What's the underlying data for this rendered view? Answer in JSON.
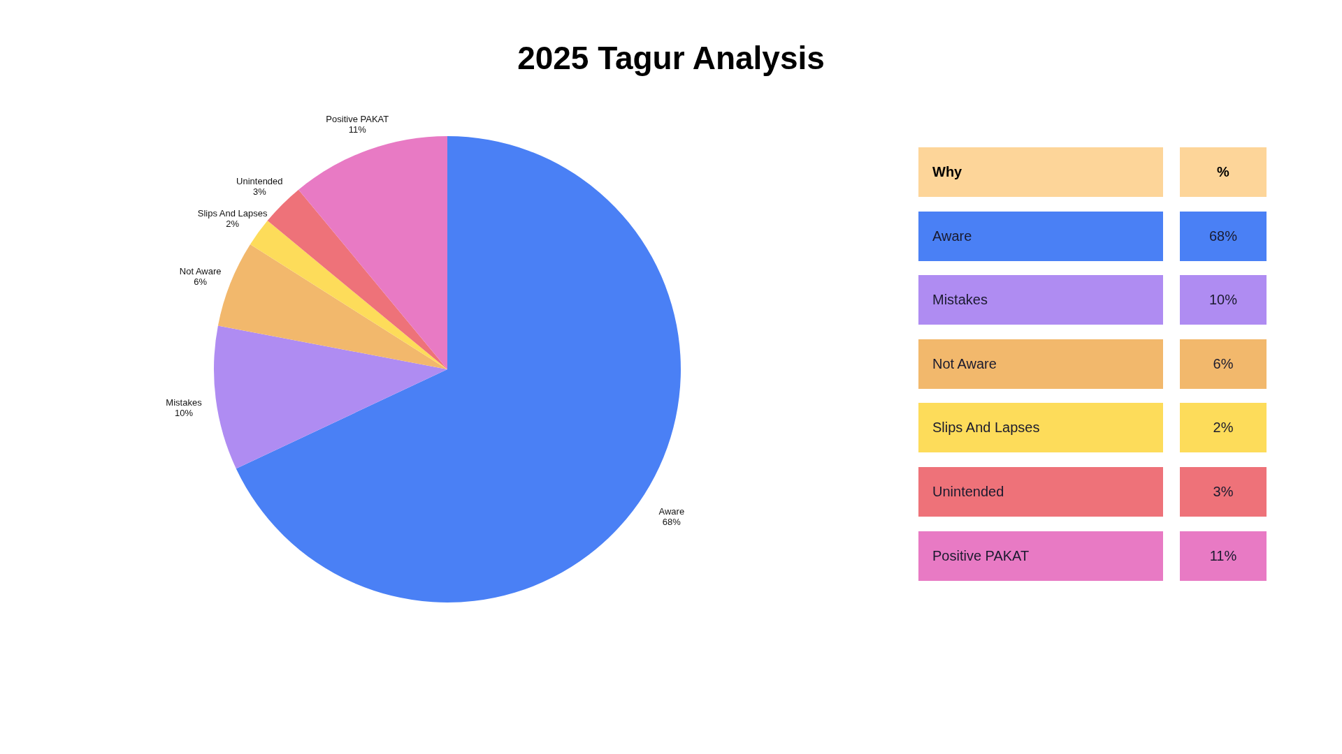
{
  "chart_data": {
    "type": "pie",
    "title": "2025 Tagur Analysis",
    "categories": [
      "Aware",
      "Mistakes",
      "Not Aware",
      "Slips And Lapses",
      "Unintended",
      "Positive PAKAT"
    ],
    "values": [
      68,
      10,
      6,
      2,
      3,
      11
    ],
    "colors": [
      "#4a80f5",
      "#af8cf2",
      "#f2b86c",
      "#fddc5a",
      "#ee7279",
      "#e87ac4"
    ],
    "value_labels": [
      "68%",
      "10%",
      "6%",
      "2%",
      "3%",
      "11%"
    ],
    "annotations": [
      "Why",
      "%"
    ]
  }
}
